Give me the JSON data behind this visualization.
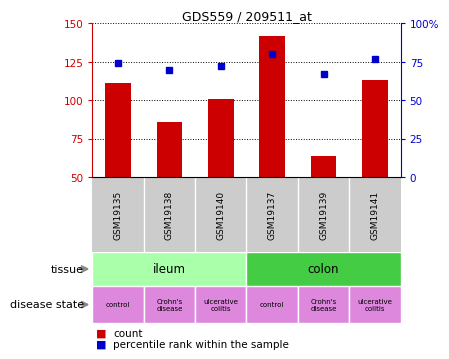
{
  "title": "GDS559 / 209511_at",
  "samples": [
    "GSM19135",
    "GSM19138",
    "GSM19140",
    "GSM19137",
    "GSM19139",
    "GSM19141"
  ],
  "counts": [
    111,
    86,
    101,
    142,
    64,
    113
  ],
  "percentiles": [
    74,
    70,
    72,
    80,
    67,
    77
  ],
  "ylim_left": [
    50,
    150
  ],
  "ylim_right": [
    0,
    100
  ],
  "yticks_left": [
    50,
    75,
    100,
    125,
    150
  ],
  "yticks_right": [
    0,
    25,
    50,
    75,
    100
  ],
  "bar_color": "#cc0000",
  "dot_color": "#0000cc",
  "tissue_groups": [
    {
      "label": "ileum",
      "span": [
        0,
        3
      ],
      "color": "#aaffaa"
    },
    {
      "label": "colon",
      "span": [
        3,
        6
      ],
      "color": "#44cc44"
    }
  ],
  "disease_states": [
    {
      "label": "control",
      "color": "#dd88dd"
    },
    {
      "label": "Crohn's\ndisease",
      "color": "#dd88dd"
    },
    {
      "label": "ulcerative\ncolitis",
      "color": "#dd88dd"
    },
    {
      "label": "control",
      "color": "#dd88dd"
    },
    {
      "label": "Crohn's\ndisease",
      "color": "#dd88dd"
    },
    {
      "label": "ulcerative\ncolitis",
      "color": "#dd88dd"
    }
  ],
  "left_tick_color": "#cc0000",
  "right_tick_color": "#0000cc",
  "sample_bg_color": "#cccccc",
  "legend_count_label": "count",
  "legend_pct_label": "percentile rank within the sample",
  "tissue_row_label": "tissue",
  "disease_row_label": "disease state"
}
